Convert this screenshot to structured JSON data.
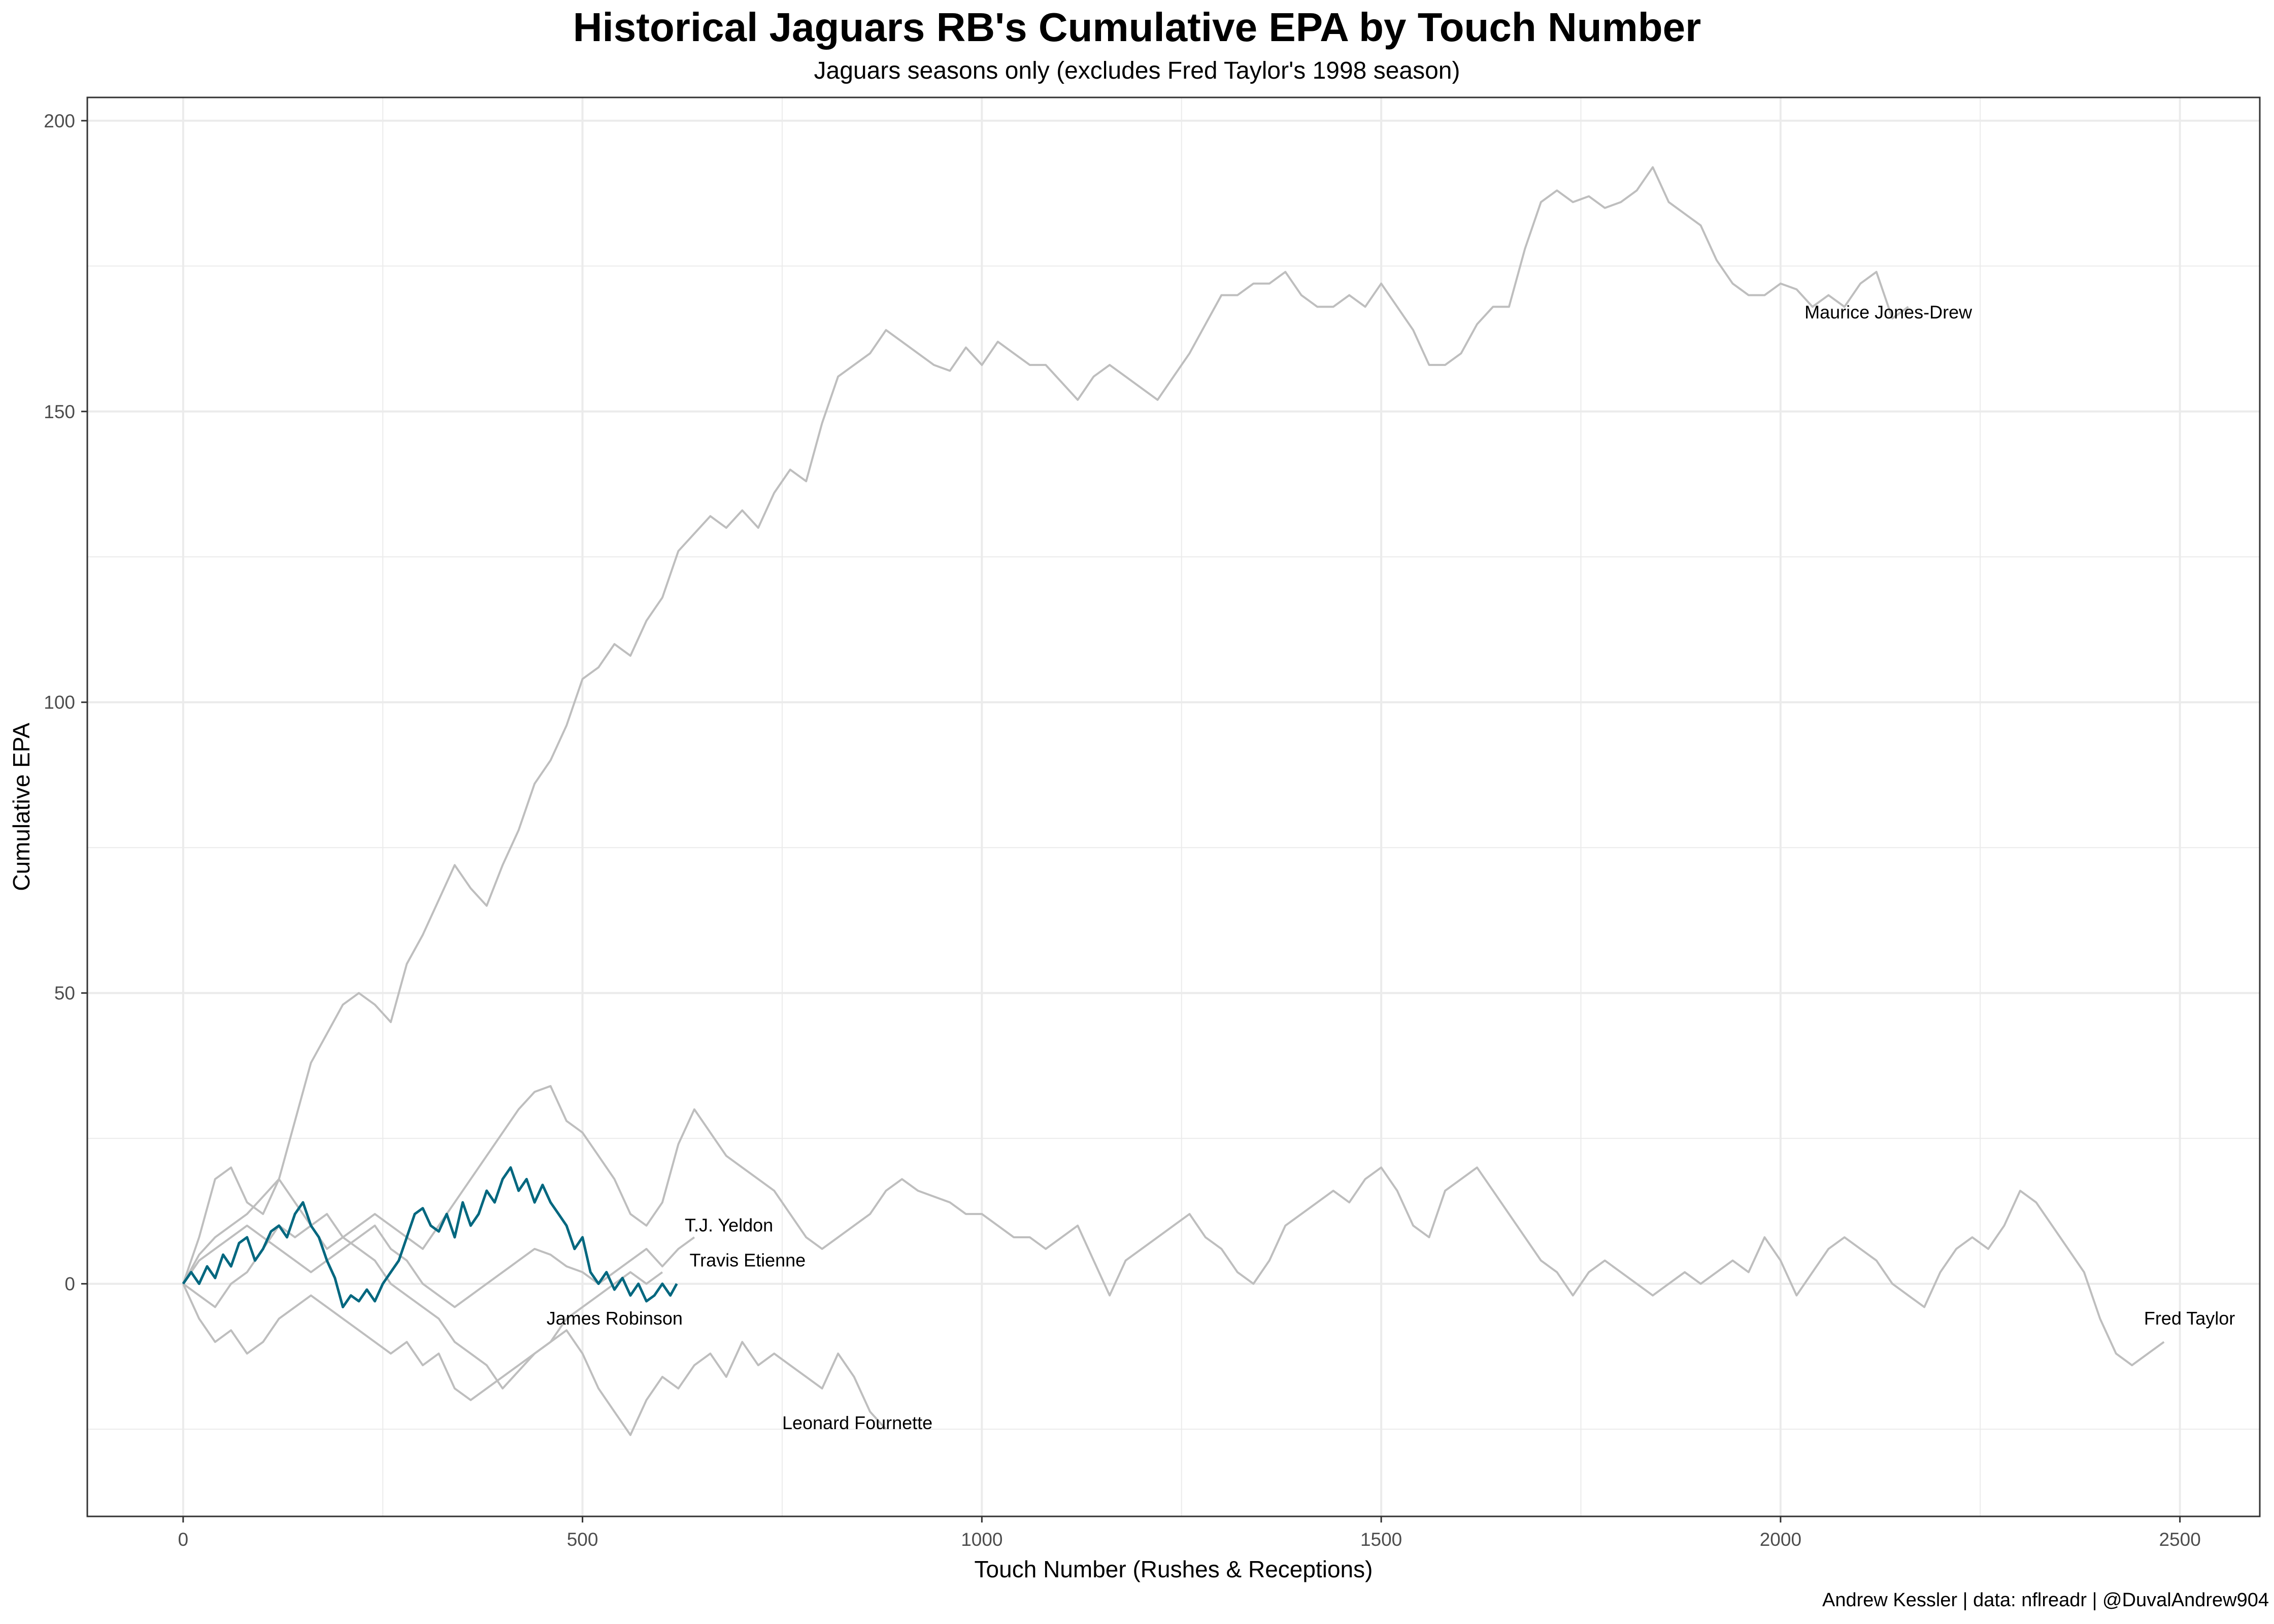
{
  "chart_data": {
    "type": "line",
    "title": "Historical Jaguars RB's Cumulative EPA by Touch Number",
    "subtitle": "Jaguars seasons only (excludes Fred Taylor's 1998 season)",
    "xlabel": "Touch Number (Rushes & Receptions)",
    "ylabel": "Cumulative EPA",
    "caption": "Andrew Kessler | data: nflreadr | @DuvalAndrew904",
    "xlim": [
      -120,
      2600
    ],
    "ylim": [
      -40,
      204
    ],
    "xticks": [
      0,
      500,
      1000,
      1500,
      2000,
      2500
    ],
    "yticks": [
      0,
      50,
      100,
      150,
      200
    ],
    "grid": true,
    "legend": "none",
    "colors": {
      "background": "#ebebeb",
      "others": "#bebebe",
      "highlight": "#00677f"
    },
    "series": [
      {
        "name": "Maurice Jones-Drew",
        "highlight": false,
        "x": [
          0,
          20,
          40,
          60,
          80,
          100,
          120,
          140,
          160,
          180,
          200,
          220,
          240,
          260,
          280,
          300,
          320,
          340,
          360,
          380,
          400,
          420,
          440,
          460,
          480,
          500,
          520,
          540,
          560,
          580,
          600,
          620,
          640,
          660,
          680,
          700,
          720,
          740,
          760,
          780,
          800,
          820,
          840,
          860,
          880,
          900,
          920,
          940,
          960,
          980,
          1000,
          1020,
          1040,
          1060,
          1080,
          1100,
          1120,
          1140,
          1160,
          1180,
          1200,
          1220,
          1240,
          1260,
          1280,
          1300,
          1320,
          1340,
          1360,
          1380,
          1400,
          1420,
          1440,
          1460,
          1480,
          1500,
          1520,
          1540,
          1560,
          1580,
          1600,
          1620,
          1640,
          1660,
          1680,
          1700,
          1720,
          1740,
          1760,
          1780,
          1800,
          1820,
          1840,
          1860,
          1880,
          1900,
          1920,
          1940,
          1960,
          1980,
          2000,
          2020,
          2040,
          2060,
          2080,
          2100,
          2120,
          2140,
          2160
        ],
        "y": [
          0,
          8,
          18,
          20,
          14,
          12,
          18,
          28,
          38,
          43,
          48,
          50,
          48,
          45,
          55,
          60,
          66,
          72,
          68,
          65,
          72,
          78,
          86,
          90,
          96,
          104,
          106,
          110,
          108,
          114,
          118,
          126,
          129,
          132,
          130,
          133,
          130,
          136,
          140,
          138,
          148,
          156,
          158,
          160,
          164,
          162,
          160,
          158,
          157,
          161,
          158,
          162,
          160,
          158,
          158,
          155,
          152,
          156,
          158,
          156,
          154,
          152,
          156,
          160,
          165,
          170,
          170,
          172,
          172,
          174,
          170,
          168,
          168,
          170,
          168,
          172,
          168,
          164,
          158,
          158,
          160,
          165,
          168,
          168,
          178,
          186,
          188,
          186,
          187,
          185,
          186,
          188,
          192,
          186,
          184,
          182,
          176,
          172,
          170,
          170,
          172,
          171,
          168,
          170,
          168,
          172,
          174,
          166,
          168
        ],
        "label_xy": [
          2030,
          166
        ]
      },
      {
        "name": "Fred Taylor",
        "highlight": false,
        "x": [
          0,
          20,
          40,
          60,
          80,
          100,
          120,
          140,
          160,
          180,
          200,
          220,
          240,
          260,
          280,
          300,
          320,
          340,
          360,
          380,
          400,
          420,
          440,
          460,
          480,
          500,
          520,
          540,
          560,
          580,
          600,
          620,
          640,
          660,
          680,
          700,
          720,
          740,
          760,
          780,
          800,
          820,
          840,
          860,
          880,
          900,
          920,
          940,
          960,
          980,
          1000,
          1020,
          1040,
          1060,
          1080,
          1100,
          1120,
          1140,
          1160,
          1180,
          1200,
          1220,
          1240,
          1260,
          1280,
          1300,
          1320,
          1340,
          1360,
          1380,
          1400,
          1420,
          1440,
          1460,
          1480,
          1500,
          1520,
          1540,
          1560,
          1580,
          1600,
          1620,
          1640,
          1660,
          1680,
          1700,
          1720,
          1740,
          1760,
          1780,
          1800,
          1820,
          1840,
          1860,
          1880,
          1900,
          1920,
          1940,
          1960,
          1980,
          2000,
          2020,
          2040,
          2060,
          2080,
          2100,
          2120,
          2140,
          2160,
          2180,
          2200,
          2220,
          2240,
          2260,
          2280,
          2300,
          2320,
          2340,
          2360,
          2380,
          2400,
          2420,
          2440,
          2460,
          2480
        ],
        "y": [
          0,
          5,
          8,
          10,
          12,
          15,
          18,
          14,
          10,
          6,
          8,
          10,
          12,
          10,
          8,
          6,
          10,
          14,
          18,
          22,
          26,
          30,
          33,
          34,
          28,
          26,
          22,
          18,
          12,
          10,
          14,
          24,
          30,
          26,
          22,
          20,
          18,
          16,
          12,
          8,
          6,
          8,
          10,
          12,
          16,
          18,
          16,
          15,
          14,
          12,
          12,
          10,
          8,
          8,
          6,
          8,
          10,
          4,
          -2,
          4,
          6,
          8,
          10,
          12,
          8,
          6,
          2,
          0,
          4,
          10,
          12,
          14,
          16,
          14,
          18,
          20,
          16,
          10,
          8,
          16,
          18,
          20,
          16,
          12,
          8,
          4,
          2,
          -2,
          2,
          4,
          2,
          0,
          -2,
          0,
          2,
          0,
          2,
          4,
          2,
          8,
          4,
          -2,
          2,
          6,
          8,
          6,
          4,
          0,
          -2,
          -4,
          2,
          6,
          8,
          6,
          10,
          16,
          14,
          10,
          6,
          2,
          -6,
          -12,
          -14,
          -12,
          -10
        ],
        "label_xy": [
          2455,
          -7
        ]
      },
      {
        "name": "T.J. Yeldon",
        "highlight": false,
        "x": [
          0,
          20,
          40,
          60,
          80,
          100,
          120,
          140,
          160,
          180,
          200,
          220,
          240,
          260,
          280,
          300,
          320,
          340,
          360,
          380,
          400,
          420,
          440,
          460,
          480,
          500,
          520,
          540,
          560,
          580,
          600,
          620,
          640
        ],
        "y": [
          0,
          4,
          6,
          8,
          10,
          8,
          6,
          4,
          2,
          4,
          6,
          8,
          10,
          6,
          4,
          0,
          -2,
          -4,
          -2,
          0,
          2,
          4,
          6,
          5,
          3,
          2,
          0,
          2,
          4,
          6,
          3,
          6,
          8
        ],
        "label_xy": [
          628,
          9
        ]
      },
      {
        "name": "Travis Etienne",
        "highlight": true,
        "x": [
          0,
          10,
          20,
          30,
          40,
          50,
          60,
          70,
          80,
          90,
          100,
          110,
          120,
          130,
          140,
          150,
          160,
          170,
          180,
          190,
          200,
          210,
          220,
          230,
          240,
          250,
          260,
          270,
          280,
          290,
          300,
          310,
          320,
          330,
          340,
          350,
          360,
          370,
          380,
          390,
          400,
          410,
          420,
          430,
          440,
          450,
          460,
          470,
          480,
          490,
          500,
          510,
          520,
          530,
          540,
          550,
          560,
          570,
          580,
          590,
          600,
          610,
          618
        ],
        "y": [
          0,
          2,
          0,
          3,
          1,
          5,
          3,
          7,
          8,
          4,
          6,
          9,
          10,
          8,
          12,
          14,
          10,
          8,
          4,
          1,
          -4,
          -2,
          -3,
          -1,
          -3,
          0,
          2,
          4,
          8,
          12,
          13,
          10,
          9,
          12,
          8,
          14,
          10,
          12,
          16,
          14,
          18,
          20,
          16,
          18,
          14,
          17,
          14,
          12,
          10,
          6,
          8,
          2,
          0,
          2,
          -1,
          1,
          -2,
          0,
          -3,
          -2,
          0,
          -2,
          0
        ],
        "label_xy": [
          634,
          3
        ]
      },
      {
        "name": "James Robinson",
        "highlight": false,
        "x": [
          0,
          20,
          40,
          60,
          80,
          100,
          120,
          140,
          160,
          180,
          200,
          220,
          240,
          260,
          280,
          300,
          320,
          340,
          360,
          380,
          400,
          420,
          440,
          460,
          480,
          500,
          520,
          540,
          560,
          580,
          600
        ],
        "y": [
          0,
          -2,
          -4,
          0,
          2,
          6,
          10,
          8,
          10,
          12,
          8,
          6,
          4,
          0,
          -2,
          -4,
          -6,
          -10,
          -12,
          -14,
          -18,
          -15,
          -12,
          -10,
          -6,
          -4,
          -2,
          0,
          2,
          0,
          2
        ],
        "label_xy": [
          455,
          -7
        ]
      },
      {
        "name": "Leonard Fournette",
        "highlight": false,
        "x": [
          0,
          20,
          40,
          60,
          80,
          100,
          120,
          140,
          160,
          180,
          200,
          220,
          240,
          260,
          280,
          300,
          320,
          340,
          360,
          380,
          400,
          420,
          440,
          460,
          480,
          500,
          520,
          540,
          560,
          580,
          600,
          620,
          640,
          660,
          680,
          700,
          720,
          740,
          760,
          780,
          800,
          820,
          840,
          860,
          880
        ],
        "y": [
          0,
          -6,
          -10,
          -8,
          -12,
          -10,
          -6,
          -4,
          -2,
          -4,
          -6,
          -8,
          -10,
          -12,
          -10,
          -14,
          -12,
          -18,
          -20,
          -18,
          -16,
          -14,
          -12,
          -10,
          -8,
          -12,
          -18,
          -22,
          -26,
          -20,
          -16,
          -18,
          -14,
          -12,
          -16,
          -10,
          -14,
          -12,
          -14,
          -16,
          -18,
          -12,
          -16,
          -22,
          -25
        ],
        "label_xy": [
          750,
          -25
        ]
      }
    ]
  }
}
